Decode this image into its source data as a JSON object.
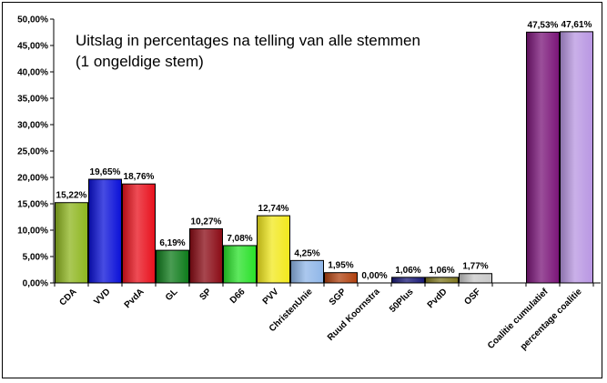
{
  "chart_data": {
    "type": "bar",
    "title_lines": [
      "Uitslag in percentages na telling van alle stemmen",
      "(1 ongeldige stem)"
    ],
    "xlabel": "",
    "ylabel": "",
    "ylim": [
      0,
      50
    ],
    "yticks": [
      "0,00%",
      "5,00%",
      "10,00%",
      "15,00%",
      "20,00%",
      "25,00%",
      "30,00%",
      "35,00%",
      "40,00%",
      "45,00%",
      "50,00%"
    ],
    "grid": false,
    "legend": "none",
    "categories": [
      "CDA",
      "VVD",
      "PvdA",
      "GL",
      "SP",
      "D66",
      "PVV",
      "ChristenUnie",
      "SGP",
      "Ruud Koornstra",
      "50Plus",
      "PvdD",
      "OSF",
      "Coalitie cumulatief",
      "percentage coalitie"
    ],
    "values": [
      15.22,
      19.65,
      18.76,
      6.19,
      10.27,
      7.08,
      12.74,
      4.25,
      1.95,
      0.0,
      1.06,
      1.06,
      1.77,
      47.53,
      47.61
    ],
    "value_labels": [
      "15,22%",
      "19,65%",
      "18,76%",
      "6,19%",
      "10,27%",
      "7,08%",
      "12,74%",
      "4,25%",
      "1,95%",
      "0,00%",
      "1,06%",
      "1,06%",
      "1,77%",
      "47,53%",
      "47,61%"
    ],
    "colors": [
      "#8db51e",
      "#0a10d8",
      "#e8101c",
      "#0d7b1a",
      "#8a0a14",
      "#28e028",
      "#f2e81c",
      "#8fb6e8",
      "#b0400e",
      "#cccccc",
      "#1a1a78",
      "#807820",
      "#c8c8c8",
      "#7a1478",
      "#b896e2"
    ]
  }
}
